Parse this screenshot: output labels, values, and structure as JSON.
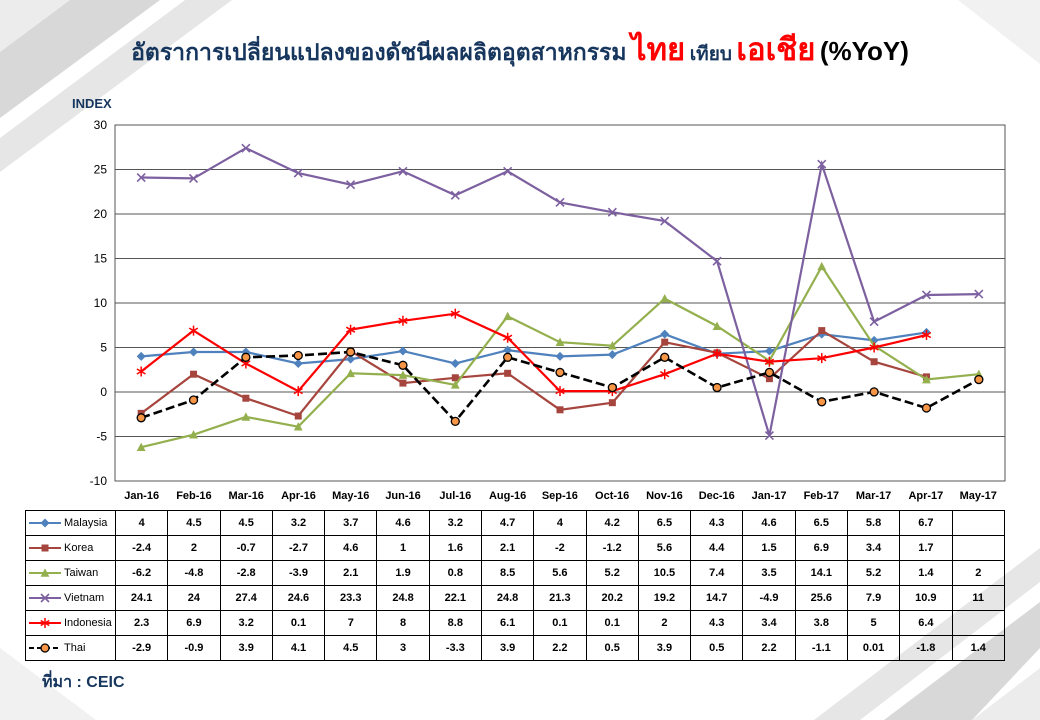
{
  "title": {
    "prefix": "อัตราการเปลี่ยนแปลงของดัชนีผลผลิตอุตสาหกรรม",
    "thai_word": "ไทย",
    "middle": "เทียบ",
    "asia_word": "เอเชีย",
    "suffix": "(%YoY)"
  },
  "axis": {
    "index_label": "INDEX"
  },
  "source": "ที่มา : CEIC",
  "chart_data": {
    "type": "line",
    "title": "อัตราการเปลี่ยนแปลงของดัชนีผลผลิตอุตสาหกรรม ไทย เทียบ เอเชีย (%YoY)",
    "ylabel": "INDEX",
    "xlabel": "",
    "ylim": [
      -10,
      30
    ],
    "yticks": [
      30,
      25,
      20,
      15,
      10,
      5,
      0,
      -5,
      -10
    ],
    "grid": true,
    "legend_position": "table-left-column",
    "categories": [
      "Jan-16",
      "Feb-16",
      "Mar-16",
      "Apr-16",
      "May-16",
      "Jun-16",
      "Jul-16",
      "Aug-16",
      "Sep-16",
      "Oct-16",
      "Nov-16",
      "Dec-16",
      "Jan-17",
      "Feb-17",
      "Mar-17",
      "Apr-17",
      "May-17"
    ],
    "series": [
      {
        "name": "Malaysia",
        "color": "#4F81BD",
        "marker": "diamond",
        "line_style": "solid",
        "values": [
          4,
          4.5,
          4.5,
          3.2,
          3.7,
          4.6,
          3.2,
          4.7,
          4,
          4.2,
          6.5,
          4.3,
          4.6,
          6.5,
          5.8,
          6.7,
          null
        ]
      },
      {
        "name": "Korea",
        "color": "#A6453E",
        "marker": "square",
        "line_style": "solid",
        "values": [
          -2.4,
          2,
          -0.7,
          -2.7,
          4.6,
          1,
          1.6,
          2.1,
          -2,
          -1.2,
          5.6,
          4.4,
          1.5,
          6.9,
          3.4,
          1.7,
          null
        ]
      },
      {
        "name": "Taiwan",
        "color": "#94B04E",
        "marker": "triangle",
        "line_style": "solid",
        "values": [
          -6.2,
          -4.8,
          -2.8,
          -3.9,
          2.1,
          1.9,
          0.8,
          8.5,
          5.6,
          5.2,
          10.5,
          7.4,
          3.5,
          14.1,
          5.2,
          1.4,
          2
        ]
      },
      {
        "name": "Vietnam",
        "color": "#7D60A0",
        "marker": "x",
        "line_style": "solid",
        "values": [
          24.1,
          24,
          27.4,
          24.6,
          23.3,
          24.8,
          22.1,
          24.8,
          21.3,
          20.2,
          19.2,
          14.7,
          -4.9,
          25.6,
          7.9,
          10.9,
          11
        ]
      },
      {
        "name": "Indonesia",
        "color": "#FF0000",
        "marker": "asterisk",
        "line_style": "solid",
        "values": [
          2.3,
          6.9,
          3.2,
          0.1,
          7,
          8,
          8.8,
          6.1,
          0.1,
          0.1,
          2,
          4.3,
          3.4,
          3.8,
          5,
          6.4,
          null
        ]
      },
      {
        "name": "Thai",
        "color": "#000000",
        "marker": "circle",
        "marker_fill": "#F79646",
        "line_style": "dashed",
        "values": [
          -2.9,
          -0.9,
          3.9,
          4.1,
          4.5,
          3,
          -3.3,
          3.9,
          2.2,
          0.5,
          3.9,
          0.5,
          2.2,
          -1.1,
          0.01,
          -1.8,
          1.4
        ]
      }
    ]
  }
}
